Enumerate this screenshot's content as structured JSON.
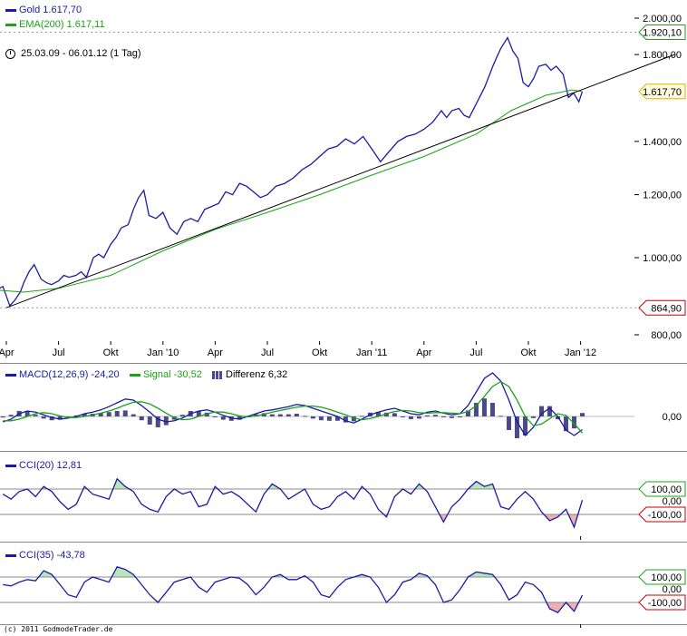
{
  "legend": {
    "gold": "Gold 1.617,70",
    "ema": "EMA(200) 1.617,11",
    "range": "25.03.09 - 06.01.12 (1 Tag)",
    "macd": "MACD(12,26,9) -24,20",
    "signal": "Signal -30,52",
    "diff": "Differenz 6,32",
    "cci20": "CCI(20) 12,81",
    "cci35": "CCI(35) -43,78"
  },
  "colors": {
    "gold": "#1a1aa6",
    "ema": "#19a319",
    "trend": "#000000",
    "up": "#b8e6b8",
    "down": "#eeb0b0",
    "grid": "#999999"
  },
  "copyright": "(c) 2011 GodmodeTrader.de",
  "chart_data": [
    {
      "type": "line",
      "title": "Gold",
      "yscale": "log",
      "ylim": [
        800,
        2000
      ],
      "x_unit": "months since Apr 2009",
      "ytick_labels": [
        {
          "v": 2000,
          "t": "2.000,00"
        },
        {
          "v": 1800,
          "t": "1.800,00"
        },
        {
          "v": 1400,
          "t": "1.400,00"
        },
        {
          "v": 1200,
          "t": "1.200,00"
        },
        {
          "v": 1000,
          "t": "1.000,00"
        },
        {
          "v": 800,
          "t": "800,00"
        }
      ],
      "xtick_labels": [
        {
          "m": 0,
          "t": "Apr"
        },
        {
          "m": 3,
          "t": "Jul"
        },
        {
          "m": 6,
          "t": "Okt"
        },
        {
          "m": 9,
          "t": "Jan '10"
        },
        {
          "m": 12,
          "t": "Apr"
        },
        {
          "m": 15,
          "t": "Jul"
        },
        {
          "m": 18,
          "t": "Okt"
        },
        {
          "m": 21,
          "t": "Jan '11"
        },
        {
          "m": 24,
          "t": "Apr"
        },
        {
          "m": 27,
          "t": "Jul"
        },
        {
          "m": 30,
          "t": "Okt"
        },
        {
          "m": 33,
          "t": "Jan '12"
        }
      ],
      "markers": [
        {
          "v": 1920.1,
          "t": "1.920,10",
          "kind": "high"
        },
        {
          "v": 1617.7,
          "t": "1.617,70",
          "kind": "last"
        },
        {
          "v": 864.9,
          "t": "864,90",
          "kind": "low"
        }
      ],
      "series": [
        {
          "name": "Gold",
          "points": [
            [
              -0.4,
              915
            ],
            [
              -0.2,
              920
            ],
            [
              0,
              895
            ],
            [
              0.2,
              870
            ],
            [
              0.5,
              885
            ],
            [
              0.8,
              905
            ],
            [
              1,
              930
            ],
            [
              1.3,
              960
            ],
            [
              1.6,
              980
            ],
            [
              2,
              940
            ],
            [
              2.3,
              930
            ],
            [
              2.6,
              925
            ],
            [
              3,
              935
            ],
            [
              3.3,
              950
            ],
            [
              3.6,
              945
            ],
            [
              4,
              950
            ],
            [
              4.3,
              960
            ],
            [
              4.6,
              945
            ],
            [
              5,
              1000
            ],
            [
              5.3,
              1010
            ],
            [
              5.6,
              1000
            ],
            [
              6,
              1040
            ],
            [
              6.3,
              1060
            ],
            [
              6.6,
              1090
            ],
            [
              7,
              1100
            ],
            [
              7.3,
              1150
            ],
            [
              7.6,
              1190
            ],
            [
              7.9,
              1215
            ],
            [
              8.2,
              1130
            ],
            [
              8.6,
              1120
            ],
            [
              9,
              1140
            ],
            [
              9.4,
              1090
            ],
            [
              9.8,
              1070
            ],
            [
              10.2,
              1110
            ],
            [
              10.6,
              1120
            ],
            [
              11,
              1110
            ],
            [
              11.4,
              1150
            ],
            [
              11.8,
              1160
            ],
            [
              12.2,
              1170
            ],
            [
              12.6,
              1210
            ],
            [
              13,
              1200
            ],
            [
              13.4,
              1240
            ],
            [
              13.8,
              1230
            ],
            [
              14.2,
              1210
            ],
            [
              14.6,
              1190
            ],
            [
              15,
              1200
            ],
            [
              15.5,
              1230
            ],
            [
              16,
              1240
            ],
            [
              16.5,
              1260
            ],
            [
              17,
              1290
            ],
            [
              17.5,
              1310
            ],
            [
              18,
              1340
            ],
            [
              18.5,
              1370
            ],
            [
              19,
              1380
            ],
            [
              19.5,
              1410
            ],
            [
              20,
              1390
            ],
            [
              20.5,
              1420
            ],
            [
              21,
              1370
            ],
            [
              21.5,
              1320
            ],
            [
              22,
              1360
            ],
            [
              22.5,
              1400
            ],
            [
              23,
              1420
            ],
            [
              23.5,
              1430
            ],
            [
              24,
              1450
            ],
            [
              24.5,
              1480
            ],
            [
              25,
              1530
            ],
            [
              25.3,
              1500
            ],
            [
              25.6,
              1530
            ],
            [
              26,
              1540
            ],
            [
              26.3,
              1510
            ],
            [
              26.6,
              1500
            ],
            [
              27,
              1560
            ],
            [
              27.5,
              1640
            ],
            [
              28,
              1750
            ],
            [
              28.4,
              1830
            ],
            [
              28.8,
              1890
            ],
            [
              29.1,
              1820
            ],
            [
              29.4,
              1780
            ],
            [
              29.7,
              1660
            ],
            [
              30,
              1640
            ],
            [
              30.3,
              1680
            ],
            [
              30.6,
              1740
            ],
            [
              31,
              1750
            ],
            [
              31.3,
              1720
            ],
            [
              31.6,
              1740
            ],
            [
              32,
              1700
            ],
            [
              32.3,
              1590
            ],
            [
              32.6,
              1610
            ],
            [
              32.9,
              1570
            ],
            [
              33.1,
              1617.7
            ]
          ]
        },
        {
          "name": "EMA(200)",
          "points": [
            [
              -0.4,
              910
            ],
            [
              1,
              905
            ],
            [
              3,
              915
            ],
            [
              6,
              950
            ],
            [
              9,
              1020
            ],
            [
              12,
              1085
            ],
            [
              15,
              1140
            ],
            [
              18,
              1200
            ],
            [
              21,
              1270
            ],
            [
              24,
              1340
            ],
            [
              27,
              1430
            ],
            [
              29,
              1530
            ],
            [
              31,
              1600
            ],
            [
              32.5,
              1625
            ],
            [
              33.1,
              1617.11
            ]
          ]
        },
        {
          "name": "Trendlinie",
          "points": [
            [
              0,
              865
            ],
            [
              38.4,
              1800
            ]
          ]
        }
      ]
    },
    {
      "type": "line",
      "title": "MACD(12,26,9)",
      "x_range_months": [
        -0.2,
        33.1
      ],
      "ylim": [
        -60,
        100
      ],
      "ytick_labels": [
        {
          "v": 0,
          "t": "0,00"
        }
      ],
      "series": [
        {
          "name": "MACD",
          "values": [
            -10,
            -5,
            5,
            10,
            8,
            3,
            -2,
            -5,
            -3,
            0,
            5,
            8,
            12,
            18,
            25,
            32,
            30,
            20,
            8,
            -5,
            -10,
            -8,
            -3,
            5,
            10,
            12,
            8,
            2,
            -3,
            -5,
            0,
            5,
            10,
            12,
            15,
            18,
            22,
            20,
            15,
            10,
            5,
            0,
            -8,
            -12,
            -5,
            3,
            8,
            12,
            15,
            10,
            5,
            3,
            8,
            10,
            6,
            3,
            5,
            20,
            45,
            70,
            80,
            65,
            30,
            -10,
            -35,
            -20,
            5,
            15,
            0,
            -25,
            -35,
            -24.2
          ]
        },
        {
          "name": "Signal",
          "values": [
            -8,
            -8,
            -5,
            0,
            5,
            7,
            5,
            1,
            -2,
            -2,
            0,
            3,
            6,
            10,
            15,
            21,
            26,
            27,
            23,
            15,
            6,
            -2,
            -6,
            -5,
            0,
            5,
            8,
            8,
            5,
            1,
            -1,
            1,
            4,
            8,
            11,
            14,
            17,
            19,
            19,
            17,
            13,
            8,
            3,
            -3,
            -6,
            -4,
            0,
            5,
            9,
            11,
            10,
            7,
            6,
            7,
            7,
            6,
            5,
            9,
            20,
            37,
            55,
            64,
            55,
            30,
            0,
            -17,
            -14,
            -4,
            5,
            2,
            -13,
            -30.52
          ]
        }
      ]
    },
    {
      "type": "line",
      "title": "CCI(20)",
      "x_range_months": [
        -0.2,
        33.1
      ],
      "ylim": [
        -250,
        250
      ],
      "ytick_labels": [
        {
          "v": 100,
          "t": "100,00"
        },
        {
          "v": 0,
          "t": "0,00"
        },
        {
          "v": -100,
          "t": "-100,00"
        }
      ],
      "series": [
        {
          "name": "CCI(20)",
          "values": [
            60,
            20,
            80,
            100,
            40,
            120,
            80,
            0,
            -60,
            -20,
            120,
            60,
            40,
            20,
            180,
            120,
            80,
            -20,
            -60,
            -80,
            40,
            100,
            60,
            80,
            -40,
            -20,
            120,
            60,
            80,
            40,
            -20,
            -80,
            60,
            140,
            100,
            20,
            60,
            100,
            -20,
            -60,
            -40,
            40,
            80,
            20,
            120,
            60,
            -60,
            -120,
            40,
            100,
            60,
            140,
            80,
            -40,
            -160,
            -40,
            20,
            100,
            160,
            120,
            140,
            -40,
            -60,
            20,
            80,
            20,
            -80,
            -150,
            -120,
            -60,
            -200,
            12.81
          ]
        }
      ]
    },
    {
      "type": "line",
      "title": "CCI(35)",
      "x_range_months": [
        -0.2,
        33.1
      ],
      "ylim": [
        -250,
        250
      ],
      "ytick_labels": [
        {
          "v": 100,
          "t": "100,00"
        },
        {
          "v": 0,
          "t": "0,00"
        },
        {
          "v": -100,
          "t": "-100,00"
        }
      ],
      "series": [
        {
          "name": "CCI(35)",
          "values": [
            40,
            30,
            60,
            80,
            70,
            150,
            120,
            40,
            -40,
            -60,
            60,
            100,
            80,
            60,
            180,
            160,
            120,
            40,
            -40,
            -100,
            -20,
            60,
            80,
            100,
            20,
            -20,
            60,
            80,
            100,
            90,
            40,
            -40,
            20,
            100,
            120,
            80,
            80,
            110,
            60,
            -40,
            -60,
            20,
            80,
            100,
            120,
            100,
            20,
            -100,
            -40,
            60,
            80,
            130,
            110,
            40,
            -100,
            -80,
            0,
            100,
            140,
            130,
            120,
            40,
            -80,
            -40,
            60,
            40,
            -20,
            -150,
            -180,
            -100,
            -170,
            -43.78
          ]
        }
      ]
    }
  ]
}
